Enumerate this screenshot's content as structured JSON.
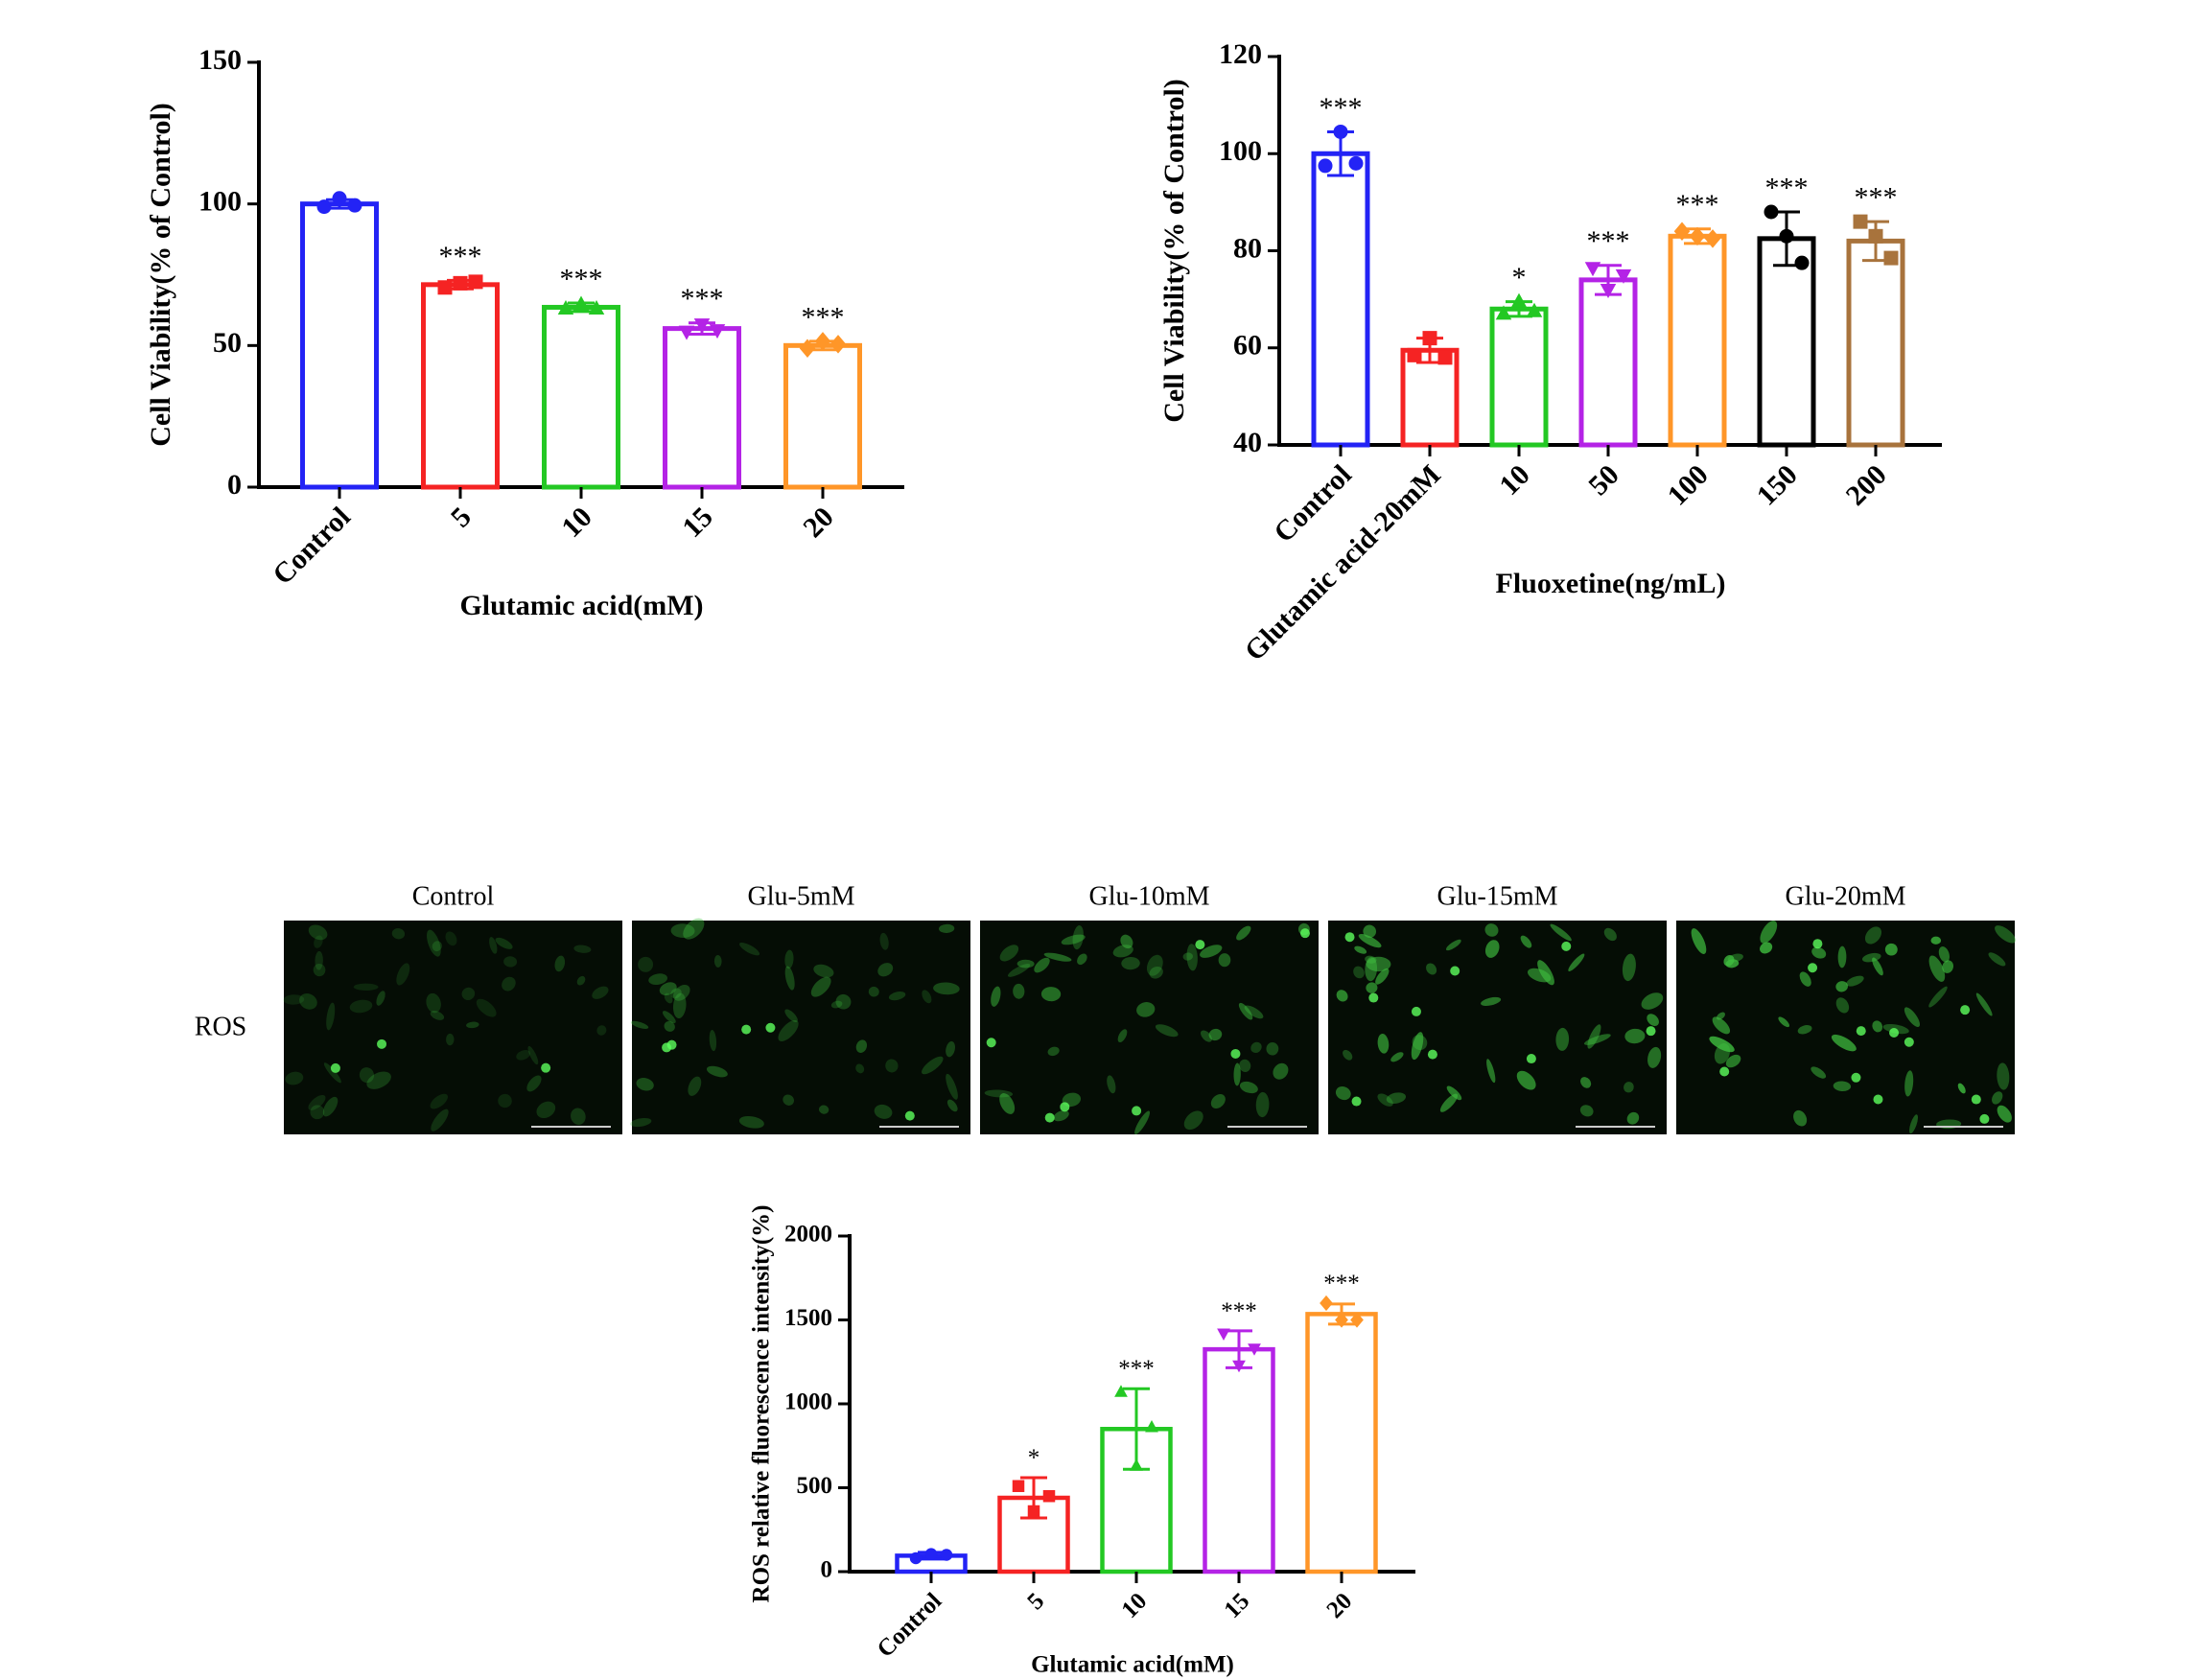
{
  "chart_data": [
    {
      "type": "bar",
      "y_label": "Cell Viability(% of Control)",
      "x_label": "Glutamic acid(mM)",
      "categories": [
        "Control",
        "5",
        "10",
        "15",
        "20"
      ],
      "values": [
        100,
        71.5,
        63.5,
        56,
        50
      ],
      "errors": [
        1.5,
        1.5,
        1.5,
        2,
        1.5
      ],
      "points": [
        [
          99,
          102,
          99.5
        ],
        [
          70.5,
          72,
          72.5
        ],
        [
          63,
          64.5,
          63
        ],
        [
          55,
          57.5,
          55.5
        ],
        [
          49,
          51.5,
          50.5
        ]
      ],
      "annotations": [
        null,
        "***",
        "***",
        "***",
        "***"
      ],
      "colors": [
        "#2323f5",
        "#f52323",
        "#23c823",
        "#b423e6",
        "#ff9628"
      ],
      "ylim": [
        0,
        150
      ],
      "yticks": [
        0,
        50,
        100,
        150
      ]
    },
    {
      "type": "bar",
      "y_label": "Cell Viability(% of Control)",
      "x_label": "Fluoxetine(ng/mL)",
      "categories": [
        "Control",
        "Glutamic acid-20mM",
        "10",
        "50",
        "100",
        "150",
        "200"
      ],
      "values": [
        100,
        59.5,
        68,
        74,
        83,
        82.5,
        82
      ],
      "errors": [
        4.5,
        2.5,
        1.5,
        3,
        1.5,
        5.5,
        4
      ],
      "points": [
        [
          97.5,
          104.5,
          98
        ],
        [
          58.5,
          62,
          58
        ],
        [
          67,
          69.5,
          67.5
        ],
        [
          76.5,
          72,
          75
        ],
        [
          84,
          83,
          82.5
        ],
        [
          88,
          83,
          77.5
        ],
        [
          86,
          83,
          78.5
        ]
      ],
      "annotations": [
        "***",
        null,
        "*",
        "***",
        "***",
        "***",
        "***"
      ],
      "colors": [
        "#2323f5",
        "#f52323",
        "#23c823",
        "#b423e6",
        "#ff9628",
        "#000000",
        "#a8733c"
      ],
      "ylim": [
        40,
        120
      ],
      "yticks": [
        40,
        60,
        80,
        100,
        120
      ]
    },
    {
      "type": "bar",
      "y_label": "ROS relative fluorescence intensity(%)",
      "x_label": "Glutamic acid(mM)",
      "categories": [
        "Control",
        "5",
        "10",
        "15",
        "20"
      ],
      "values": [
        95,
        440,
        850,
        1325,
        1535
      ],
      "errors": [
        20,
        120,
        240,
        110,
        60
      ],
      "points": [
        [
          80,
          105,
          100
        ],
        [
          510,
          360,
          450
        ],
        [
          1070,
          630,
          860
        ],
        [
          1420,
          1230,
          1330
        ],
        [
          1600,
          1500,
          1500
        ]
      ],
      "annotations": [
        null,
        "*",
        "***",
        "***",
        "***"
      ],
      "colors": [
        "#2323f5",
        "#f52323",
        "#23c823",
        "#b423e6",
        "#ff9628"
      ],
      "ylim": [
        0,
        2000
      ],
      "yticks": [
        0,
        500,
        1000,
        1500,
        2000
      ]
    }
  ],
  "image_panel": {
    "row_label": "ROS",
    "columns": [
      "Control",
      "Glu-5mM",
      "Glu-10mM",
      "Glu-15mM",
      "Glu-20mM"
    ]
  }
}
